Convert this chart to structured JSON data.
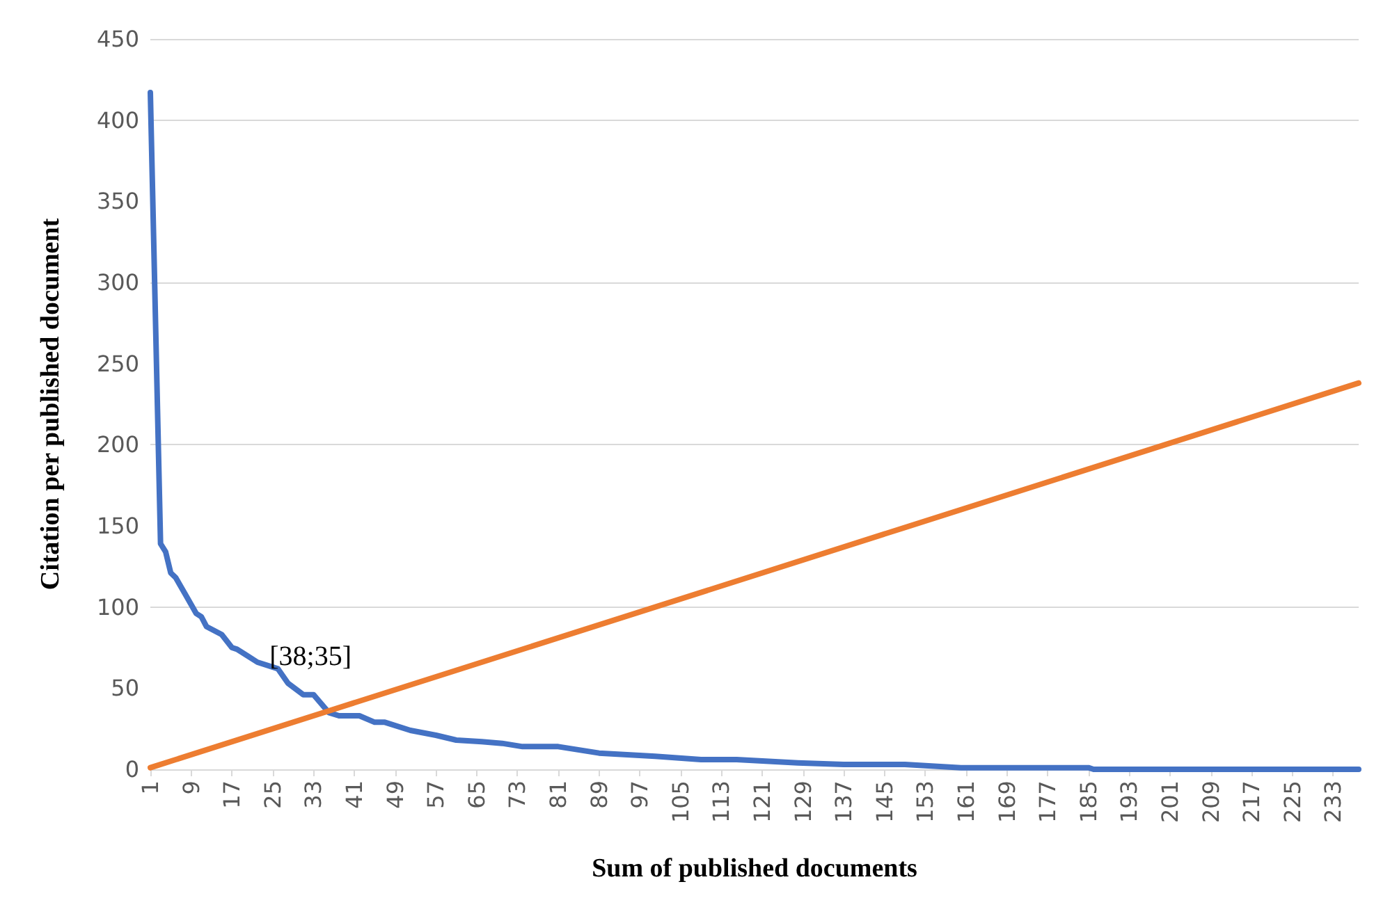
{
  "chart_data": {
    "type": "line",
    "xlabel": "Sum of published documents",
    "ylabel": "Citation per published document",
    "xlim": [
      1,
      238
    ],
    "xticks": [
      1,
      9,
      17,
      25,
      33,
      41,
      49,
      57,
      65,
      73,
      81,
      89,
      97,
      105,
      113,
      121,
      129,
      137,
      145,
      153,
      161,
      169,
      177,
      185,
      193,
      201,
      209,
      217,
      225,
      233
    ],
    "ylim": [
      0,
      450
    ],
    "yticks": [
      0,
      50,
      100,
      150,
      200,
      250,
      300,
      350,
      400,
      450
    ],
    "series": [
      {
        "color": "#4472c4",
        "x": [
          1,
          3,
          4,
          5,
          6,
          8,
          10,
          11,
          12,
          15,
          17,
          18,
          20,
          22,
          26,
          28,
          31,
          33,
          36,
          38,
          42,
          45,
          47,
          52,
          57,
          61,
          66,
          70,
          74,
          81,
          89,
          100,
          109,
          116,
          128,
          137,
          149,
          160,
          185,
          186,
          238
        ],
        "values": [
          417,
          139,
          134,
          121,
          118,
          107,
          96,
          94,
          88,
          83,
          75,
          74,
          70,
          66,
          62,
          53,
          46,
          46,
          35,
          33,
          33,
          29,
          29,
          24,
          21,
          18,
          17,
          16,
          14,
          14,
          10,
          8,
          6,
          6,
          4,
          3,
          3,
          1,
          1,
          0,
          0
        ]
      },
      {
        "color": "#ed7d31",
        "x": [
          1,
          238
        ],
        "values": [
          1,
          238
        ]
      }
    ],
    "annotations": [
      {
        "text": "[38;35]",
        "x": 38,
        "y": 35
      }
    ],
    "grid": "y",
    "marker": "none",
    "line_style": "solid"
  }
}
